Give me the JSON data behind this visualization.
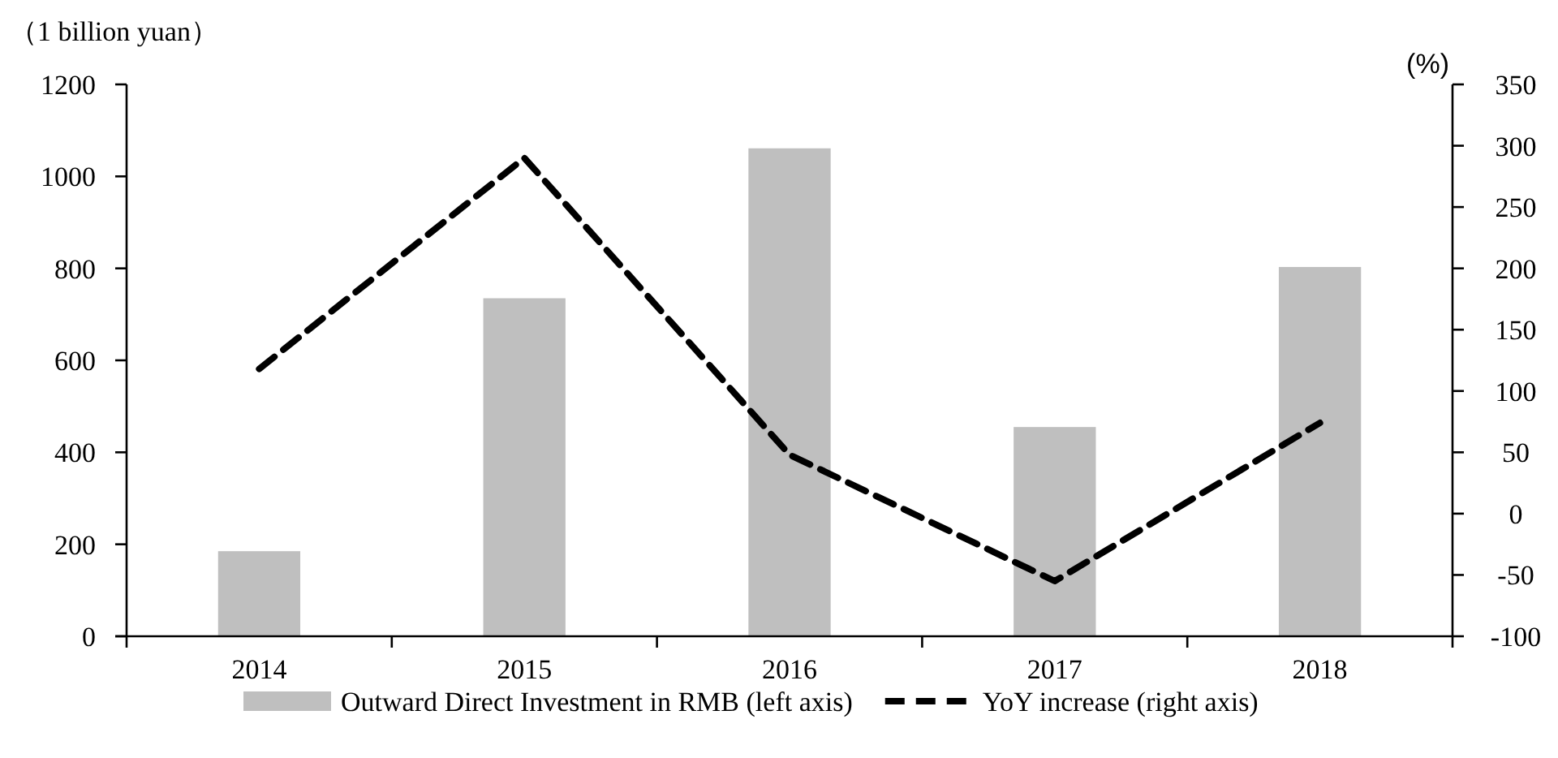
{
  "chart_data": {
    "type": "bar",
    "categories": [
      "2014",
      "2015",
      "2016",
      "2017",
      "2018"
    ],
    "ylabel": "（1 billion yuan）",
    "y2label": "(%)",
    "series": [
      {
        "name": "Outward Direct Investment in RMB (left axis)",
        "color": "#bfbfbf",
        "values": [
          185,
          735,
          1061,
          455,
          803
        ]
      },
      {
        "name": "YoY increase (right axis)",
        "type": "line",
        "axis": "y2",
        "color": "#000000",
        "line_style": "dashed",
        "values": [
          118,
          290,
          48,
          -55,
          74
        ]
      }
    ],
    "ylim": [
      0,
      1200
    ],
    "yticks": [
      0,
      200,
      400,
      600,
      800,
      1000,
      1200
    ],
    "y2lim": [
      -100,
      350
    ],
    "y2ticks": [
      -100,
      -50,
      0,
      50,
      100,
      150,
      200,
      250,
      300,
      350
    ],
    "grid": false,
    "legend": "bottom"
  }
}
